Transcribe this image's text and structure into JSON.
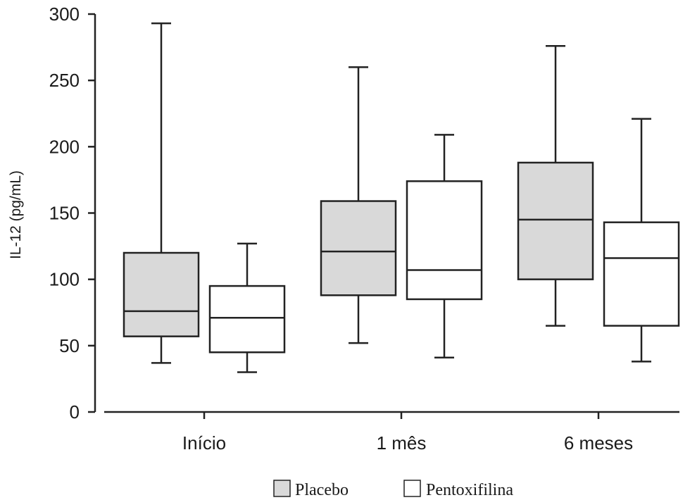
{
  "chart_data": {
    "type": "boxplot",
    "title": "",
    "xlabel": "",
    "ylabel": "IL-12 (pg/mL)",
    "ylim": [
      0,
      300
    ],
    "yticks": [
      0,
      50,
      100,
      150,
      200,
      250,
      300
    ],
    "categories": [
      "Início",
      "1 mês",
      "6 meses"
    ],
    "grid": false,
    "legend_position": "bottom",
    "series": [
      {
        "name": "Placebo",
        "color": "#d9d9d9",
        "boxes": [
          {
            "min": 37,
            "q1": 57,
            "median": 76,
            "q3": 120,
            "max": 293
          },
          {
            "min": 52,
            "q1": 88,
            "median": 121,
            "q3": 159,
            "max": 260
          },
          {
            "min": 65,
            "q1": 100,
            "median": 145,
            "q3": 188,
            "max": 276
          }
        ]
      },
      {
        "name": "Pentoxifilina",
        "color": "#ffffff",
        "boxes": [
          {
            "min": 30,
            "q1": 45,
            "median": 71,
            "q3": 95,
            "max": 127
          },
          {
            "min": 41,
            "q1": 85,
            "median": 107,
            "q3": 174,
            "max": 209
          },
          {
            "min": 38,
            "q1": 65,
            "median": 116,
            "q3": 143,
            "max": 221
          }
        ]
      }
    ]
  }
}
